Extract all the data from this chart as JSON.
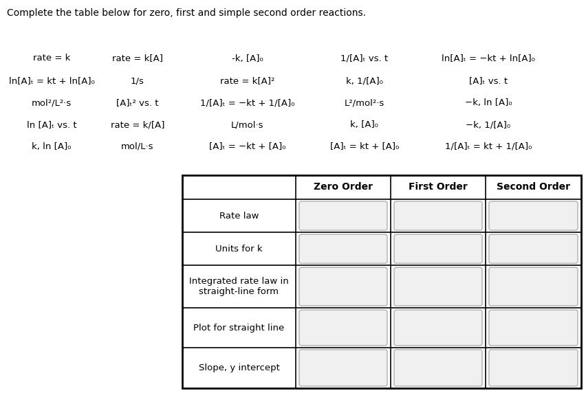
{
  "title": "Complete the table below for zero, first and simple second order reactions.",
  "title_fontsize": 10,
  "bg_color": "#ffffff",
  "scattered_items": [
    [
      "rate = k",
      "rate = k[A]",
      "-k, [A]₀",
      "1/[A]ₜ vs. t",
      "ln[A]ₜ = −kt + ln[A]₀"
    ],
    [
      "ln[A]ₜ = kt + ln[A]₀",
      "1/s",
      "rate = k[A]²",
      "k, 1/[A]₀",
      "[A]ₜ vs. t"
    ],
    [
      "mol²/L²·s",
      "[A]ₜ² vs. t",
      "1/[A]ₜ = −kt + 1/[A]₀",
      "L²/mol²·s",
      "−k, ln [A]₀"
    ],
    [
      "ln [A]ₜ vs. t",
      "rate = k/[A]",
      "L/mol·s",
      "k, [A]₀",
      "−k, 1/[A]₀"
    ],
    [
      "k, ln [A]₀",
      "mol/L·s",
      "[A]ₜ = −kt + [A]₀",
      "[A]ₜ = kt + [A]₀",
      "1/[A]ₜ = kt + 1/[A]₀"
    ]
  ],
  "scattered_fontsize": 9.5,
  "table_header": [
    "",
    "Zero Order",
    "First Order",
    "Second Order"
  ],
  "table_rows": [
    "Rate law",
    "Units for k",
    "Integrated rate law in\nstraight-line form",
    "Plot for straight line",
    "Slope, y intercept"
  ],
  "table_header_fontsize": 10,
  "table_row_fontsize": 9.5,
  "line_color": "#000000",
  "box_edge_color": "#b0b0b0",
  "box_fill_color": "#f0f0f0"
}
